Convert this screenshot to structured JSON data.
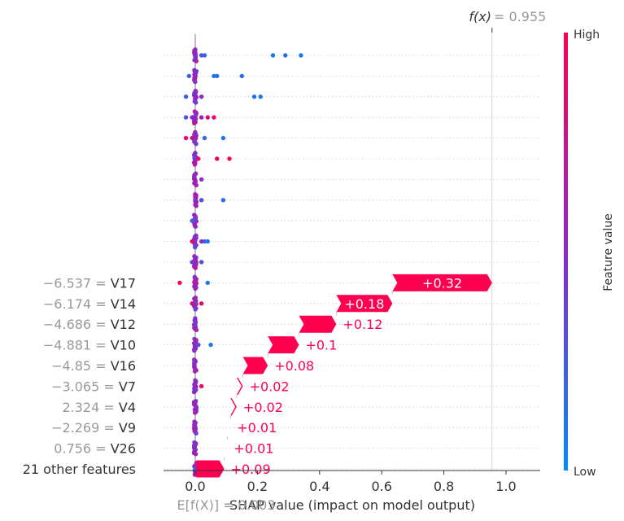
{
  "chart_data": {
    "type": "shap-waterfall-beeswarm",
    "xlabel": "SHAP value (impact on model output)",
    "xlim": [
      -0.1,
      1.12
    ],
    "xticks": [
      0.0,
      0.2,
      0.4,
      0.6,
      0.8,
      1.0
    ],
    "xtick_labels": [
      "0.0",
      "0.2",
      "0.4",
      "0.6",
      "0.8",
      "1.0"
    ],
    "base_value": 0.003,
    "base_label": "E[f(X)] = 0.003",
    "output_value": 0.955,
    "output_name": "f(x)",
    "output_value_text": "= 0.955",
    "colorbar": {
      "title": "Feature value",
      "high": "High",
      "low": "Low",
      "high_color": "#ff0051",
      "low_color": "#008bfb"
    },
    "features": [
      {
        "value_text": "−6.537",
        "name": "V17",
        "shap": 0.32,
        "label": "+0.32"
      },
      {
        "value_text": "−6.174",
        "name": "V14",
        "shap": 0.18,
        "label": "+0.18"
      },
      {
        "value_text": "−4.686",
        "name": "V12",
        "shap": 0.12,
        "label": "+0.12"
      },
      {
        "value_text": "−4.881",
        "name": "V10",
        "shap": 0.1,
        "label": "+0.1"
      },
      {
        "value_text": "−4.85",
        "name": "V16",
        "shap": 0.08,
        "label": "+0.08"
      },
      {
        "value_text": "−3.065",
        "name": "V7",
        "shap": 0.02,
        "label": "+0.02"
      },
      {
        "value_text": "2.324",
        "name": "V4",
        "shap": 0.02,
        "label": "+0.02"
      },
      {
        "value_text": "−2.269",
        "name": "V9",
        "shap": 0.01,
        "label": "+0.01"
      },
      {
        "value_text": "0.756",
        "name": "V26",
        "shap": 0.01,
        "label": "+0.01"
      },
      {
        "value_text": "",
        "name": "21 other features",
        "shap": 0.09,
        "label": "+0.09"
      }
    ],
    "rows_without_labels": 11,
    "beeswarm_outliers": [
      {
        "row": 0,
        "points": [
          [
            0.25,
            0.1
          ],
          [
            0.29,
            0.15
          ],
          [
            0.34,
            0.1
          ],
          [
            0.02,
            0.3
          ],
          [
            0.03,
            0.2
          ]
        ]
      },
      {
        "row": 1,
        "points": [
          [
            -0.02,
            0.2
          ],
          [
            0.07,
            0.15
          ],
          [
            0.06,
            0.1
          ],
          [
            0.15,
            0.15
          ]
        ]
      },
      {
        "row": 2,
        "points": [
          [
            -0.03,
            0.2
          ],
          [
            0.19,
            0.15
          ],
          [
            0.21,
            0.1
          ],
          [
            0.02,
            0.5
          ]
        ]
      },
      {
        "row": 3,
        "points": [
          [
            -0.03,
            0.3
          ],
          [
            0.06,
            0.9
          ],
          [
            0.04,
            0.8
          ],
          [
            0.02,
            0.6
          ],
          [
            -0.01,
            0.5
          ]
        ]
      },
      {
        "row": 4,
        "points": [
          [
            -0.03,
            0.9
          ],
          [
            0.09,
            0.1
          ],
          [
            0.03,
            0.2
          ],
          [
            -0.01,
            0.8
          ]
        ]
      },
      {
        "row": 5,
        "points": [
          [
            0.07,
            0.9
          ],
          [
            0.11,
            0.95
          ],
          [
            0.01,
            0.9
          ]
        ]
      },
      {
        "row": 6,
        "points": [
          [
            0.02,
            0.5
          ]
        ]
      },
      {
        "row": 7,
        "points": [
          [
            0.09,
            0.15
          ],
          [
            0.02,
            0.3
          ]
        ]
      },
      {
        "row": 8,
        "points": [
          [
            -0.01,
            0.2
          ]
        ]
      },
      {
        "row": 9,
        "points": [
          [
            -0.01,
            0.9
          ],
          [
            0.03,
            0.2
          ],
          [
            0.04,
            0.1
          ],
          [
            0.02,
            0.5
          ]
        ]
      },
      {
        "row": 10,
        "points": [
          [
            0.02,
            0.3
          ],
          [
            -0.01,
            0.4
          ]
        ]
      },
      {
        "row": 11,
        "points": [
          [
            -0.05,
            0.95
          ],
          [
            0.04,
            0.1
          ],
          [
            0.0,
            0.7
          ]
        ]
      },
      {
        "row": 12,
        "points": [
          [
            0.02,
            0.9
          ],
          [
            -0.01,
            0.8
          ]
        ]
      },
      {
        "row": 14,
        "points": [
          [
            0.05,
            0.1
          ],
          [
            0.01,
            0.3
          ]
        ]
      },
      {
        "row": 16,
        "points": [
          [
            0.02,
            0.9
          ]
        ]
      },
      {
        "row": 20,
        "points": [
          [
            0.0,
            0.2
          ],
          [
            0.01,
            0.3
          ]
        ]
      }
    ]
  }
}
